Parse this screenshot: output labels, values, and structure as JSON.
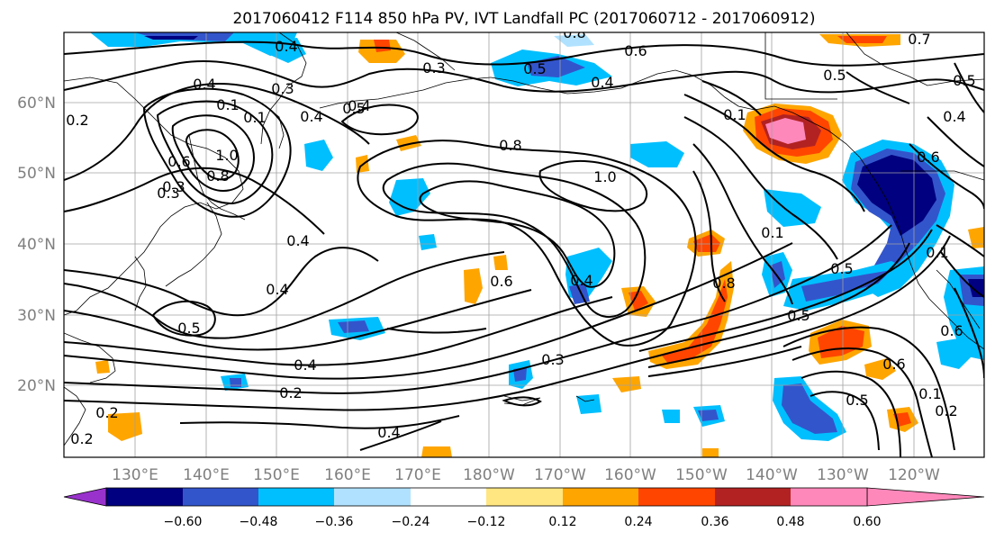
{
  "title": "2017060412 F114 850 hPa PV, IVT Landfall PC (2017060712 - 2017060912)",
  "map": {
    "lon_labels": [
      "130°E",
      "140°E",
      "150°E",
      "160°E",
      "170°E",
      "180°W",
      "170°W",
      "160°W",
      "150°W",
      "140°W",
      "130°W",
      "120°W"
    ],
    "lat_labels": [
      "60°N",
      "50°N",
      "40°N",
      "30°N",
      "20°N"
    ]
  },
  "colorbar": {
    "colors": [
      "#9932cc",
      "#000080",
      "#3355cc",
      "#00bfff",
      "#b0e2ff",
      "#ffffff",
      "#ffe680",
      "#ffa500",
      "#ff4500",
      "#b22222",
      "#ff88bb"
    ],
    "ticks": [
      "−0.60",
      "−0.48",
      "−0.36",
      "−0.24",
      "−0.12",
      "0.12",
      "0.24",
      "0.36",
      "0.48",
      "0.60"
    ]
  },
  "contour_labels": [
    "0.4",
    "0.3",
    "0.8",
    "0.6",
    "0.4",
    "0.5",
    "0.3",
    "0.4",
    "0.2",
    "0.4",
    "0.1",
    "0.1",
    "1.0",
    "0.6",
    "0.8",
    "0.3",
    "0.4",
    "0.5",
    "0.8",
    "1.0",
    "0.4",
    "0.4",
    "0.6",
    "0.4",
    "0.4",
    "0.5",
    "0.4",
    "0.2",
    "0.3",
    "0.2",
    "0.2",
    "0.3",
    "0.8",
    "0.1",
    "0.1",
    "0.5",
    "0.6",
    "0.5",
    "0.6",
    "0.1",
    "0.5",
    "0.2",
    "0.4",
    "0.6",
    "0.1",
    "0.5",
    "0.7",
    "0.5"
  ]
}
